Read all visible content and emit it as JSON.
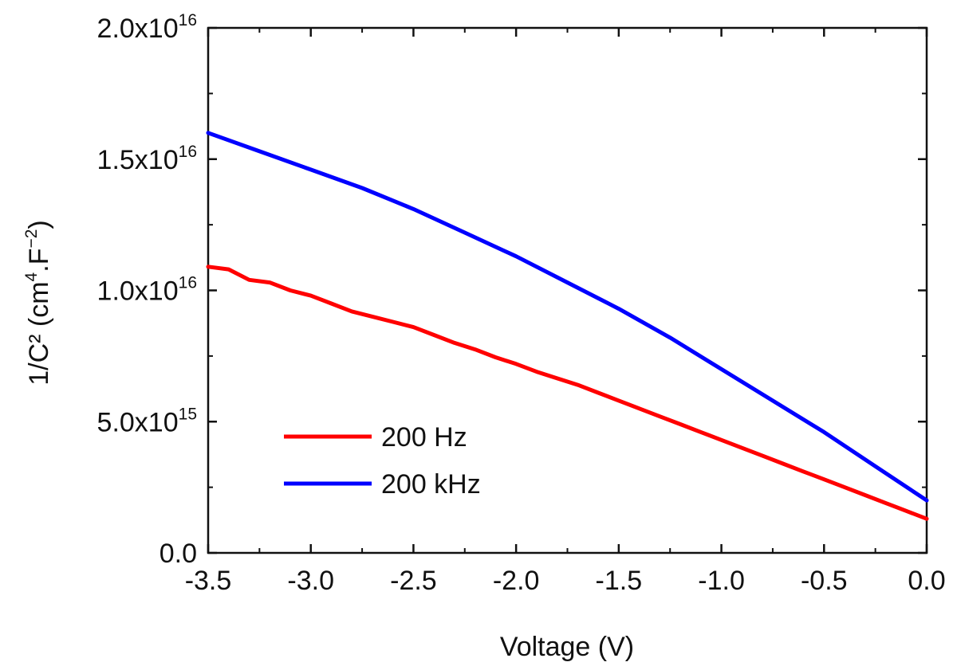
{
  "chart_data": {
    "type": "line",
    "xlabel": "Voltage (V)",
    "ylabel": {
      "main": "1/C² (cm",
      "sup1": "4",
      "mid": ".F",
      "sup2": "−2",
      "end": ")"
    },
    "xlim": [
      -3.5,
      0.0
    ],
    "ylim": [
      0,
      2e+16
    ],
    "x_ticks": [
      -3.5,
      -3.0,
      -2.5,
      -2.0,
      -1.5,
      -1.0,
      -0.5,
      0.0
    ],
    "x_tick_labels": [
      "-3.5",
      "-3.0",
      "-2.5",
      "-2.0",
      "-1.5",
      "-1.0",
      "-0.5",
      "0.0"
    ],
    "y_ticks": [
      0,
      5000000000000000.0,
      1e+16,
      1.5e+16,
      2e+16
    ],
    "y_tick_labels": [
      {
        "mant": "0.0",
        "exp": ""
      },
      {
        "mant": "5.0x10",
        "exp": "15"
      },
      {
        "mant": "1.0x10",
        "exp": "16"
      },
      {
        "mant": "1.5x10",
        "exp": "16"
      },
      {
        "mant": "2.0x10",
        "exp": "16"
      }
    ],
    "legend_position": "lower-left",
    "series": [
      {
        "name": "200 Hz",
        "color": "#ff0000",
        "x": [
          -3.5,
          -3.4,
          -3.3,
          -3.2,
          -3.1,
          -3.0,
          -2.9,
          -2.8,
          -2.7,
          -2.6,
          -2.5,
          -2.4,
          -2.3,
          -2.2,
          -2.1,
          -2.0,
          -1.9,
          -1.8,
          -1.7,
          -1.6,
          -1.5,
          -1.4,
          -1.3,
          -1.2,
          -1.1,
          -1.0,
          -0.9,
          -0.8,
          -0.7,
          -0.6,
          -0.5,
          -0.4,
          -0.3,
          -0.2,
          -0.1,
          0.0
        ],
        "y": [
          1.09e+16,
          1.08e+16,
          1.04e+16,
          1.03e+16,
          1e+16,
          9800000000000000.0,
          9500000000000000.0,
          9200000000000000.0,
          9000000000000000.0,
          8800000000000000.0,
          8600000000000000.0,
          8300000000000000.0,
          8000000000000000.0,
          7750000000000000.0,
          7450000000000000.0,
          7200000000000000.0,
          6900000000000000.0,
          6650000000000000.0,
          6400000000000000.0,
          6100000000000000.0,
          5800000000000000.0,
          5500000000000000.0,
          5200000000000000.0,
          4900000000000000.0,
          4600000000000000.0,
          4300000000000000.0,
          4000000000000000.0,
          3700000000000000.0,
          3400000000000000.0,
          3100000000000000.0,
          2800000000000000.0,
          2500000000000000.0,
          2200000000000000.0,
          1900000000000000.0,
          1600000000000000.0,
          1300000000000000.0
        ]
      },
      {
        "name": "200 kHz",
        "color": "#0000ff",
        "x": [
          -3.5,
          -3.25,
          -3.0,
          -2.75,
          -2.5,
          -2.25,
          -2.0,
          -1.75,
          -1.5,
          -1.25,
          -1.0,
          -0.75,
          -0.5,
          -0.25,
          0.0
        ],
        "y": [
          1.6e+16,
          1.53e+16,
          1.46e+16,
          1.39e+16,
          1.31e+16,
          1.22e+16,
          1.13e+16,
          1.03e+16,
          9300000000000000.0,
          8200000000000000.0,
          7000000000000000.0,
          5800000000000000.0,
          4600000000000000.0,
          3300000000000000.0,
          2000000000000000.0
        ]
      }
    ]
  }
}
